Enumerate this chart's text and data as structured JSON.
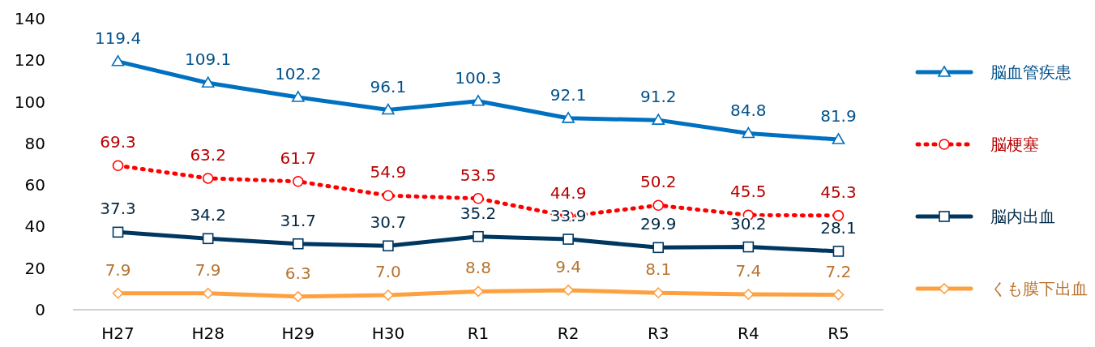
{
  "chart_data": {
    "type": "line",
    "categories": [
      "H27",
      "H28",
      "H29",
      "H30",
      "R1",
      "R2",
      "R3",
      "R4",
      "R5"
    ],
    "ylim": [
      0,
      140
    ],
    "yticks": [
      0,
      20,
      40,
      60,
      80,
      100,
      120,
      140
    ],
    "grid": false,
    "legend": "right",
    "data_labels": true,
    "series": [
      {
        "name": "脳血管疾患",
        "color": "#0070c0",
        "marker": "triangle",
        "line_style": "solid",
        "values": [
          119.4,
          109.1,
          102.2,
          96.1,
          100.3,
          92.1,
          91.2,
          84.8,
          81.9
        ]
      },
      {
        "name": "脳梗塞",
        "color": "#ff0000",
        "marker": "circle",
        "line_style": "dotted",
        "values": [
          69.3,
          63.2,
          61.7,
          54.9,
          53.5,
          44.9,
          50.2,
          45.5,
          45.3
        ]
      },
      {
        "name": "脳内出血",
        "color": "#003760",
        "marker": "square",
        "line_style": "solid",
        "values": [
          37.3,
          34.2,
          31.7,
          30.7,
          35.2,
          33.9,
          29.9,
          30.2,
          28.1
        ]
      },
      {
        "name": "くも膜下出血",
        "color": "#ffa040",
        "marker": "diamond",
        "line_style": "solid",
        "values": [
          7.9,
          7.9,
          6.3,
          7.0,
          8.8,
          9.4,
          8.1,
          7.4,
          7.2
        ],
        "value_labels": [
          "7.9",
          "7.9",
          "6.3",
          "7.0",
          "8.8",
          "9.4",
          "8.1",
          "7.4",
          "7.2"
        ]
      }
    ]
  }
}
